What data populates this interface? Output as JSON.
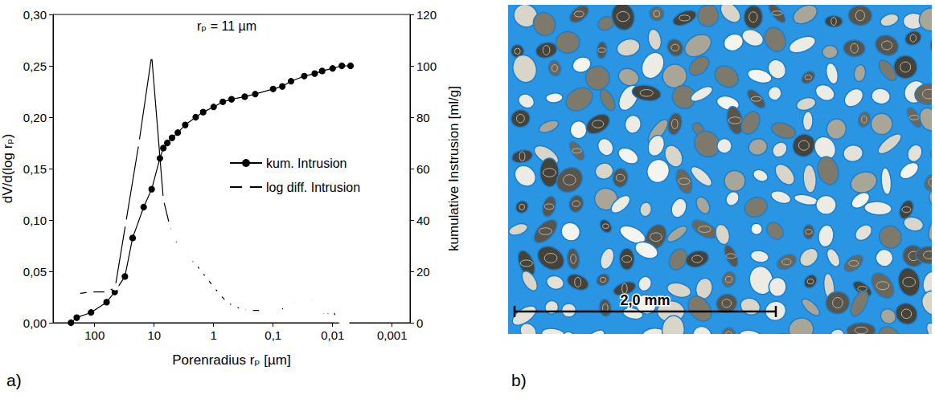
{
  "chart_data": {
    "type": "line",
    "xlabel": "Porenradius rₚ [µm]",
    "ylabel": "dV/d(log rₚ)",
    "y2label": "kumulative Instrusion [ml/g]",
    "annotation": "rₚ = 11 µm",
    "log": "x",
    "grid": false,
    "legend": "right",
    "xlim": [
      500,
      0.0005
    ],
    "xticks": [
      100,
      10,
      1,
      {
        "value": 0.1,
        "label": "0,1"
      },
      {
        "value": 0.01,
        "label": "0,01"
      },
      {
        "value": 0.001,
        "label": "0,001"
      }
    ],
    "ylim": [
      0,
      0.3
    ],
    "yticks": [
      {
        "value": 0,
        "label": "0,00"
      },
      {
        "value": 0.05,
        "label": "0,05"
      },
      {
        "value": 0.1,
        "label": "0,10"
      },
      {
        "value": 0.15,
        "label": "0,15"
      },
      {
        "value": 0.2,
        "label": "0,20"
      },
      {
        "value": 0.25,
        "label": "0,25"
      },
      {
        "value": 0.3,
        "label": "0,30"
      }
    ],
    "y2lim": [
      0,
      120
    ],
    "y2ticks": [
      0,
      20,
      40,
      60,
      80,
      100,
      120
    ],
    "series": [
      {
        "name": "kum. Intrusion",
        "axis": "y2",
        "marker": "filled circle",
        "color": "#000000",
        "x": [
          250,
          200,
          115,
          63,
          46,
          31,
          23,
          15,
          11,
          8,
          7,
          6,
          5,
          4,
          3,
          2,
          1.5,
          1,
          0.7,
          0.5,
          0.3,
          0.2,
          0.1,
          0.07,
          0.05,
          0.03,
          0.02,
          0.015,
          0.01,
          0.007,
          0.005
        ],
        "values": [
          0,
          2,
          4,
          8,
          12,
          18,
          33,
          45,
          52,
          64,
          68,
          70,
          72,
          74,
          77,
          80,
          82,
          84,
          86,
          87,
          88,
          89,
          91,
          92,
          94,
          96,
          97,
          98,
          99,
          100,
          100
        ]
      },
      {
        "name": "log diff. Intrusion",
        "marker": "open circle",
        "color": "#000000",
        "x": [
          250,
          200,
          120,
          60,
          45,
          30,
          18,
          11,
          7,
          5.5,
          5,
          4.5,
          4,
          3.5,
          3,
          2.5,
          2,
          1.6,
          1.3,
          1,
          0.8,
          0.6,
          0.45,
          0.33,
          0.25,
          0.15,
          0.12,
          0.1,
          0.08,
          0.06,
          0.05,
          0.04,
          0.035,
          0.03,
          0.025,
          0.02,
          0.017,
          0.015,
          0.013,
          0.011,
          0.0095,
          0.009,
          0.007,
          0.006
        ],
        "values": [
          0.027,
          0.028,
          0.03,
          0.03,
          0.035,
          0.097,
          0.175,
          0.26,
          0.12,
          0.095,
          0.088,
          0.082,
          0.075,
          0.072,
          0.067,
          0.062,
          0.057,
          0.05,
          0.043,
          0.035,
          0.028,
          0.02,
          0.016,
          0.013,
          0.012,
          0.012,
          0.012,
          0.012,
          0.012,
          0.015,
          0.018,
          0.022,
          0.024,
          0.025,
          0.024,
          0.02,
          0.017,
          0.012,
          0.006,
          0.012,
          0.013,
          0.004,
          0.002,
          0
        ]
      }
    ]
  },
  "panel_labels": [
    "a)",
    "b)"
  ],
  "image": {
    "scale_bar": "2,0 mm"
  }
}
